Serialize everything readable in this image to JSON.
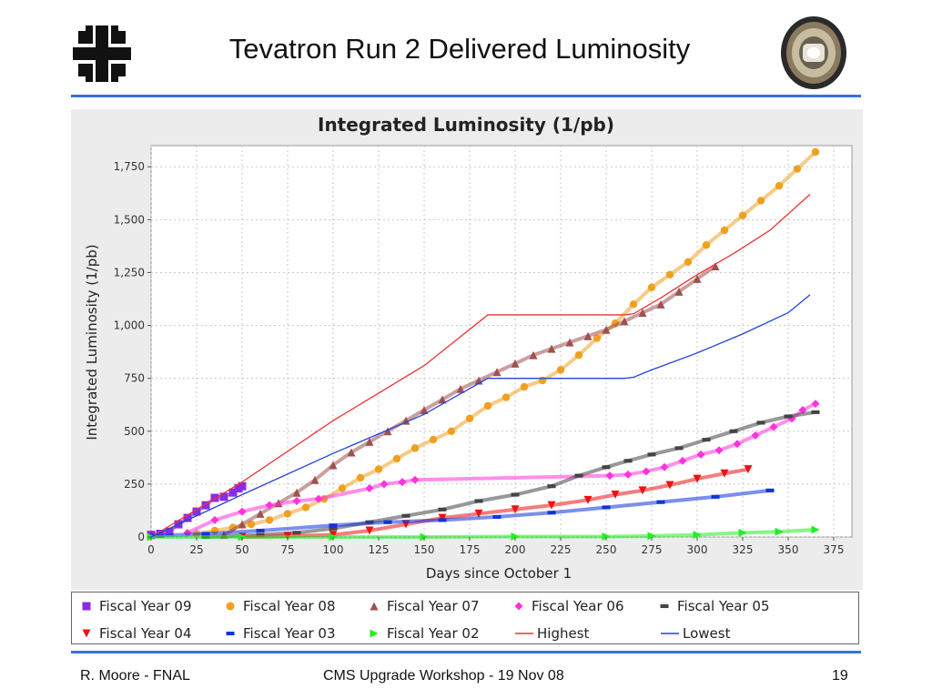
{
  "slide": {
    "title": "Tevatron Run 2 Delivered Luminosity",
    "footer_left": "R. Moore - FNAL",
    "footer_center": "CMS Upgrade Workshop - 19 Nov 08",
    "page_number": "19"
  },
  "colors": {
    "rule": "#3a6fe0",
    "plot_bg": "#ffffff",
    "panel_bg": "#ececec",
    "grid": "#c8c8c8"
  },
  "chart_data": {
    "type": "line",
    "title": "Integrated Luminosity (1/pb)",
    "xlabel": "Days since October 1",
    "ylabel": "Integrated Luminosity (1/pb)",
    "xlim": [
      0,
      385
    ],
    "ylim": [
      0,
      1850
    ],
    "xticks": [
      0,
      25,
      50,
      75,
      100,
      125,
      150,
      175,
      200,
      225,
      250,
      275,
      300,
      325,
      350,
      375
    ],
    "yticks": [
      0,
      250,
      500,
      750,
      1000,
      1250,
      1500,
      1750
    ],
    "grid": true,
    "legend_position": "bottom",
    "series": [
      {
        "name": "Fiscal Year 09",
        "color": "#8b2be2",
        "marker": "square",
        "points": [
          [
            0,
            10
          ],
          [
            5,
            15
          ],
          [
            10,
            25
          ],
          [
            15,
            60
          ],
          [
            20,
            90
          ],
          [
            25,
            120
          ],
          [
            30,
            150
          ],
          [
            35,
            185
          ],
          [
            40,
            190
          ],
          [
            45,
            210
          ],
          [
            48,
            230
          ],
          [
            50,
            240
          ]
        ]
      },
      {
        "name": "Fiscal Year 08",
        "color": "#f0a020",
        "marker": "circle",
        "points": [
          [
            25,
            15
          ],
          [
            35,
            30
          ],
          [
            45,
            45
          ],
          [
            55,
            60
          ],
          [
            65,
            80
          ],
          [
            75,
            110
          ],
          [
            85,
            140
          ],
          [
            95,
            180
          ],
          [
            105,
            230
          ],
          [
            115,
            280
          ],
          [
            125,
            320
          ],
          [
            135,
            370
          ],
          [
            145,
            420
          ],
          [
            155,
            460
          ],
          [
            165,
            500
          ],
          [
            175,
            560
          ],
          [
            185,
            620
          ],
          [
            195,
            660
          ],
          [
            205,
            710
          ],
          [
            215,
            740
          ],
          [
            225,
            790
          ],
          [
            235,
            860
          ],
          [
            245,
            940
          ],
          [
            255,
            1010
          ],
          [
            265,
            1100
          ],
          [
            275,
            1180
          ],
          [
            285,
            1240
          ],
          [
            295,
            1300
          ],
          [
            305,
            1380
          ],
          [
            315,
            1450
          ],
          [
            325,
            1520
          ],
          [
            335,
            1590
          ],
          [
            345,
            1660
          ],
          [
            355,
            1740
          ],
          [
            365,
            1820
          ]
        ]
      },
      {
        "name": "Fiscal Year 07",
        "color": "#a05050",
        "marker": "triangle-up",
        "points": [
          [
            40,
            10
          ],
          [
            50,
            60
          ],
          [
            60,
            110
          ],
          [
            70,
            160
          ],
          [
            80,
            210
          ],
          [
            90,
            270
          ],
          [
            100,
            340
          ],
          [
            110,
            400
          ],
          [
            120,
            450
          ],
          [
            130,
            500
          ],
          [
            140,
            550
          ],
          [
            150,
            600
          ],
          [
            160,
            650
          ],
          [
            170,
            700
          ],
          [
            180,
            740
          ],
          [
            190,
            780
          ],
          [
            200,
            820
          ],
          [
            210,
            860
          ],
          [
            220,
            890
          ],
          [
            230,
            920
          ],
          [
            240,
            950
          ],
          [
            250,
            980
          ],
          [
            260,
            1020
          ],
          [
            270,
            1060
          ],
          [
            280,
            1100
          ],
          [
            290,
            1160
          ],
          [
            300,
            1220
          ],
          [
            310,
            1280
          ]
        ]
      },
      {
        "name": "Fiscal Year 06",
        "color": "#ff33dd",
        "marker": "diamond",
        "points": [
          [
            20,
            20
          ],
          [
            35,
            80
          ],
          [
            50,
            120
          ],
          [
            65,
            150
          ],
          [
            80,
            170
          ],
          [
            92,
            180
          ],
          [
            120,
            230
          ],
          [
            128,
            250
          ],
          [
            138,
            260
          ],
          [
            145,
            270
          ],
          [
            252,
            290
          ],
          [
            262,
            295
          ],
          [
            272,
            310
          ],
          [
            282,
            330
          ],
          [
            292,
            360
          ],
          [
            302,
            390
          ],
          [
            312,
            410
          ],
          [
            322,
            440
          ],
          [
            332,
            480
          ],
          [
            342,
            520
          ],
          [
            352,
            560
          ],
          [
            358,
            600
          ],
          [
            365,
            630
          ]
        ]
      },
      {
        "name": "Fiscal Year 05",
        "color": "#444444",
        "marker": "dash",
        "points": [
          [
            30,
            0
          ],
          [
            60,
            10
          ],
          [
            80,
            20
          ],
          [
            100,
            40
          ],
          [
            120,
            70
          ],
          [
            140,
            100
          ],
          [
            160,
            130
          ],
          [
            180,
            170
          ],
          [
            200,
            200
          ],
          [
            220,
            240
          ],
          [
            235,
            290
          ],
          [
            250,
            330
          ],
          [
            262,
            360
          ],
          [
            275,
            390
          ],
          [
            290,
            420
          ],
          [
            305,
            460
          ],
          [
            320,
            500
          ],
          [
            335,
            540
          ],
          [
            350,
            570
          ],
          [
            365,
            590
          ]
        ]
      },
      {
        "name": "Fiscal Year 04",
        "color": "#ee1111",
        "marker": "triangle-down",
        "points": [
          [
            50,
            0
          ],
          [
            75,
            5
          ],
          [
            100,
            10
          ],
          [
            120,
            30
          ],
          [
            140,
            60
          ],
          [
            160,
            90
          ],
          [
            180,
            110
          ],
          [
            200,
            130
          ],
          [
            220,
            150
          ],
          [
            240,
            175
          ],
          [
            255,
            200
          ],
          [
            270,
            220
          ],
          [
            285,
            245
          ],
          [
            300,
            275
          ],
          [
            315,
            300
          ],
          [
            328,
            320
          ]
        ]
      },
      {
        "name": "Fiscal Year 03",
        "color": "#1133dd",
        "marker": "dash",
        "points": [
          [
            0,
            5
          ],
          [
            30,
            15
          ],
          [
            60,
            30
          ],
          [
            100,
            55
          ],
          [
            130,
            70
          ],
          [
            160,
            80
          ],
          [
            190,
            95
          ],
          [
            220,
            115
          ],
          [
            250,
            140
          ],
          [
            280,
            165
          ],
          [
            310,
            190
          ],
          [
            340,
            220
          ]
        ]
      },
      {
        "name": "Fiscal Year 02",
        "color": "#22ee22",
        "marker": "triangle-right",
        "points": [
          [
            0,
            0
          ],
          [
            50,
            0
          ],
          [
            100,
            0
          ],
          [
            150,
            0
          ],
          [
            200,
            2
          ],
          [
            250,
            2
          ],
          [
            275,
            5
          ],
          [
            300,
            10
          ],
          [
            325,
            20
          ],
          [
            345,
            25
          ],
          [
            365,
            35
          ]
        ]
      },
      {
        "name": "Highest",
        "color": "#ee3333",
        "marker": "none",
        "points": [
          [
            0,
            0
          ],
          [
            50,
            260
          ],
          [
            100,
            550
          ],
          [
            150,
            810
          ],
          [
            185,
            1050
          ],
          [
            260,
            1050
          ],
          [
            265,
            1055
          ],
          [
            280,
            1130
          ],
          [
            300,
            1240
          ],
          [
            320,
            1340
          ],
          [
            340,
            1450
          ],
          [
            362,
            1620
          ]
        ]
      },
      {
        "name": "Lowest",
        "color": "#2244dd",
        "marker": "none",
        "points": [
          [
            0,
            0
          ],
          [
            50,
            200
          ],
          [
            100,
            395
          ],
          [
            150,
            580
          ],
          [
            185,
            750
          ],
          [
            260,
            750
          ],
          [
            265,
            755
          ],
          [
            275,
            790
          ],
          [
            300,
            870
          ],
          [
            325,
            960
          ],
          [
            350,
            1060
          ],
          [
            362,
            1145
          ]
        ]
      }
    ]
  }
}
